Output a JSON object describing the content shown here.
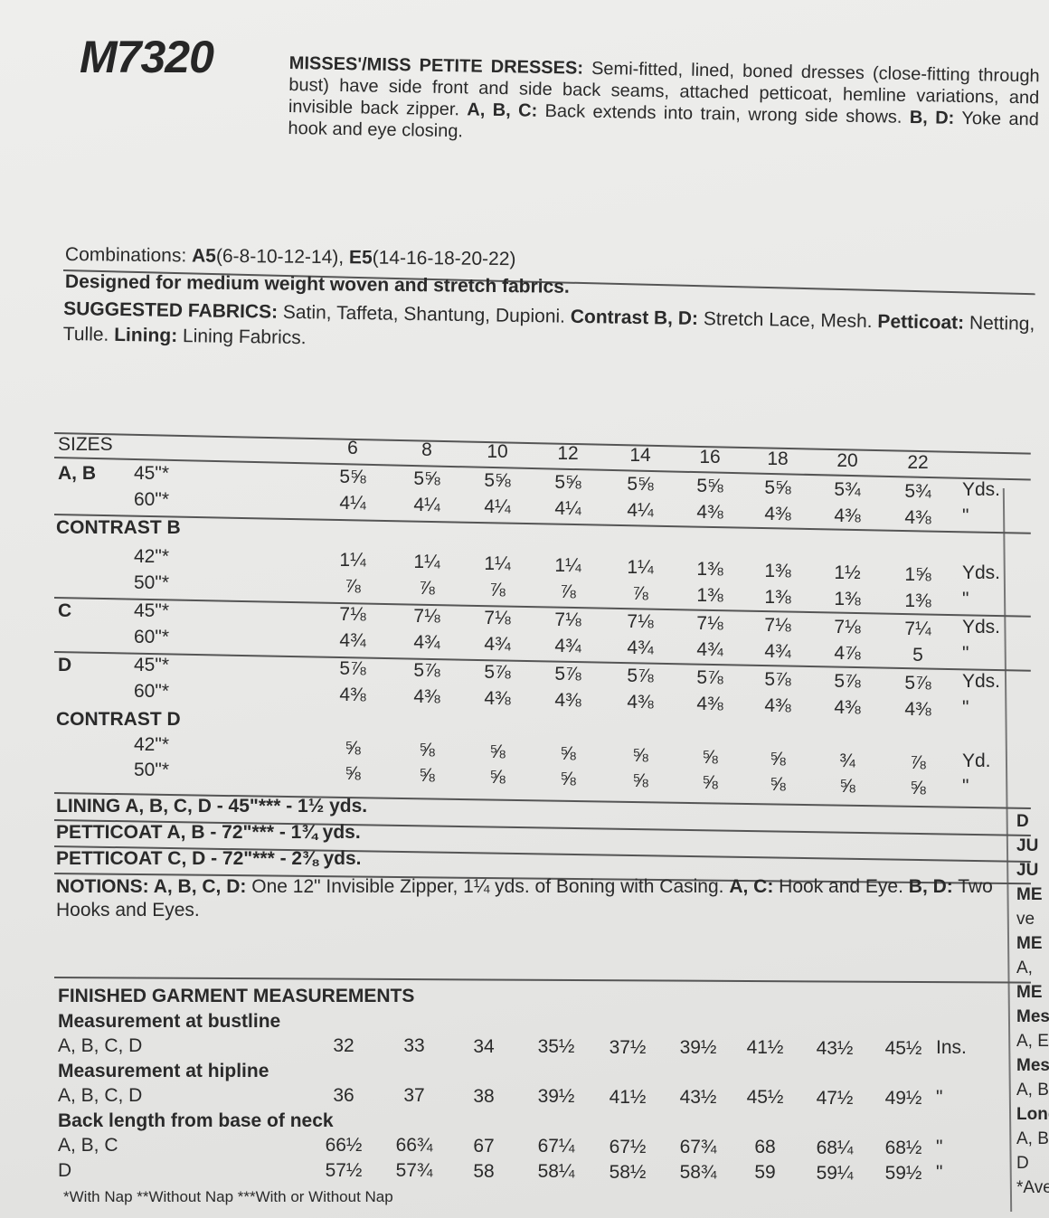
{
  "header": {
    "pattern_number": "M7320",
    "title": "MISSES'/MISS PETITE DRESSES:",
    "description": "Semi-fitted, lined, boned dresses (close-fitting through bust) have side front and side back seams, attached petticoat, hemline variations, and invisible back zipper.",
    "view_ac_label": "A, B, C:",
    "view_ac_text": "Back extends into train, wrong side shows.",
    "view_bd_label": "B, D:",
    "view_bd_text": "Yoke and hook and eye closing."
  },
  "combinations": {
    "label": "Combinations:",
    "a5": "A5",
    "a5_sizes": "(6-8-10-12-14),",
    "e5": "E5",
    "e5_sizes": "(14-16-18-20-22)"
  },
  "designed_for": "Designed for medium weight woven and stretch fabrics.",
  "fabrics": {
    "label": "SUGGESTED FABRICS:",
    "text": "Satin, Taffeta, Shantung, Dupioni.",
    "contrast_label": "Contrast B, D:",
    "contrast_text": "Stretch Lace, Mesh.",
    "petticoat_label": "Petticoat:",
    "petticoat_text": "Netting, Tulle.",
    "lining_label": "Lining:",
    "lining_text": "Lining Fabrics."
  },
  "yardage": {
    "sizes_label": "SIZES",
    "sizes": [
      "6",
      "8",
      "10",
      "12",
      "14",
      "16",
      "18",
      "20",
      "22"
    ],
    "rows": [
      {
        "view": "A, B",
        "width": "45\"*",
        "values": [
          "5⅝",
          "5⅝",
          "5⅝",
          "5⅝",
          "5⅝",
          "5⅝",
          "5⅝",
          "5¾",
          "5¾"
        ],
        "unit": "Yds."
      },
      {
        "view": "",
        "width": "60\"*",
        "values": [
          "4¼",
          "4¼",
          "4¼",
          "4¼",
          "4¼",
          "4⅜",
          "4⅜",
          "4⅜",
          "4⅜"
        ],
        "unit": "\""
      },
      {
        "section": "CONTRAST B"
      },
      {
        "view": "",
        "width": "42\"*",
        "values": [
          "1¼",
          "1¼",
          "1¼",
          "1¼",
          "1¼",
          "1⅜",
          "1⅜",
          "1½",
          "1⅝"
        ],
        "unit": "Yds."
      },
      {
        "view": "",
        "width": "50\"*",
        "values": [
          "⅞",
          "⅞",
          "⅞",
          "⅞",
          "⅞",
          "1⅜",
          "1⅜",
          "1⅜",
          "1⅜"
        ],
        "unit": "\""
      },
      {
        "view": "C",
        "width": "45\"*",
        "values": [
          "7⅛",
          "7⅛",
          "7⅛",
          "7⅛",
          "7⅛",
          "7⅛",
          "7⅛",
          "7⅛",
          "7¼"
        ],
        "unit": "Yds."
      },
      {
        "view": "",
        "width": "60\"*",
        "values": [
          "4¾",
          "4¾",
          "4¾",
          "4¾",
          "4¾",
          "4¾",
          "4¾",
          "4⅞",
          "5"
        ],
        "unit": "\""
      },
      {
        "view": "D",
        "width": "45\"*",
        "values": [
          "5⅞",
          "5⅞",
          "5⅞",
          "5⅞",
          "5⅞",
          "5⅞",
          "5⅞",
          "5⅞",
          "5⅞"
        ],
        "unit": "Yds."
      },
      {
        "view": "",
        "width": "60\"*",
        "values": [
          "4⅜",
          "4⅜",
          "4⅜",
          "4⅜",
          "4⅜",
          "4⅜",
          "4⅜",
          "4⅜",
          "4⅜"
        ],
        "unit": "\""
      },
      {
        "section": "CONTRAST D"
      },
      {
        "view": "",
        "width": "42\"*",
        "values": [
          "⅝",
          "⅝",
          "⅝",
          "⅝",
          "⅝",
          "⅝",
          "⅝",
          "¾",
          "⅞"
        ],
        "unit": "Yd."
      },
      {
        "view": "",
        "width": "50\"*",
        "values": [
          "⅝",
          "⅝",
          "⅝",
          "⅝",
          "⅝",
          "⅝",
          "⅝",
          "⅝",
          "⅝"
        ],
        "unit": "\""
      }
    ],
    "lining": "LINING A, B, C, D - 45\"*** - 1½ yds.",
    "petticoat_ab": "PETTICOAT A, B - 72\"*** - 1¾ yds.",
    "petticoat_cd": "PETTICOAT C, D - 72\"*** - 2⅜ yds."
  },
  "notions": {
    "label": "NOTIONS: A, B, C, D:",
    "text": "One 12\" Invisible Zipper, 1¼ yds. of Boning with Casing.",
    "ac_label": "A, C:",
    "ac_text": "Hook and Eye.",
    "bd_label": "B, D:",
    "bd_text": "Two Hooks and Eyes."
  },
  "finished": {
    "title": "FINISHED GARMENT MEASUREMENTS",
    "groups": [
      {
        "heading": "Measurement at bustline",
        "rows": [
          {
            "view": "A, B, C, D",
            "values": [
              "32",
              "33",
              "34",
              "35½",
              "37½",
              "39½",
              "41½",
              "43½",
              "45½"
            ],
            "unit": "Ins."
          }
        ]
      },
      {
        "heading": "Measurement at hipline",
        "rows": [
          {
            "view": "A, B, C, D",
            "values": [
              "36",
              "37",
              "38",
              "39½",
              "41½",
              "43½",
              "45½",
              "47½",
              "49½"
            ],
            "unit": "\""
          }
        ]
      },
      {
        "heading": "Back length from base of neck",
        "rows": [
          {
            "view": "A, B, C",
            "values": [
              "66½",
              "66¾",
              "67",
              "67¼",
              "67½",
              "67¾",
              "68",
              "68¼",
              "68½"
            ],
            "unit": "\""
          },
          {
            "view": "D",
            "values": [
              "57½",
              "57¾",
              "58",
              "58¼",
              "58½",
              "58¾",
              "59",
              "59¼",
              "59½"
            ],
            "unit": "\""
          }
        ]
      }
    ],
    "footnote": "*With Nap **Without Nap ***With or Without Nap"
  },
  "right_column": [
    "D",
    "JU",
    "JU",
    "ME",
    "ve",
    "ME",
    "A,",
    "ME",
    "Mes",
    "A, E",
    "Mes",
    "A, B",
    "Long",
    "A, B,",
    "D",
    "*Avec"
  ]
}
